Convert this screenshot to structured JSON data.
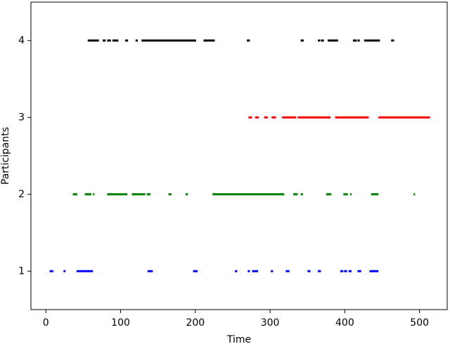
{
  "chart_data": {
    "type": "timeline",
    "xlabel": "Time",
    "ylabel": "Participants",
    "xlim": [
      -20,
      537
    ],
    "ylim": [
      0.5,
      4.5
    ],
    "xticks": [
      0,
      100,
      200,
      300,
      400,
      500
    ],
    "yticks": [
      1,
      2,
      3,
      4
    ],
    "series": [
      {
        "y": 1,
        "color": "#0000ff",
        "segments": [
          [
            5,
            10
          ],
          [
            23.5,
            26.3
          ],
          [
            41,
            63
          ],
          [
            136,
            143
          ],
          [
            197,
            203
          ],
          [
            253,
            256
          ],
          [
            270,
            273
          ],
          [
            276,
            284
          ],
          [
            301,
            304
          ],
          [
            321,
            326
          ],
          [
            350,
            354
          ],
          [
            364,
            368
          ],
          [
            394,
            398
          ],
          [
            399,
            403
          ],
          [
            405,
            409
          ],
          [
            417,
            422
          ],
          [
            433,
            445
          ]
        ]
      },
      {
        "y": 2,
        "color": "#008000",
        "segments": [
          [
            36,
            42
          ],
          [
            52,
            61
          ],
          [
            63,
            65
          ],
          [
            82,
            109
          ],
          [
            115,
            133
          ],
          [
            135,
            140
          ],
          [
            164,
            168
          ],
          [
            187,
            190
          ],
          [
            223,
            319
          ],
          [
            331,
            337
          ],
          [
            341,
            344
          ],
          [
            375,
            382
          ],
          [
            398,
            404
          ],
          [
            407,
            409
          ],
          [
            435,
            445
          ],
          [
            492,
            494
          ]
        ]
      },
      {
        "y": 3,
        "color": "#ff0000",
        "segments": [
          [
            271,
            276
          ],
          [
            280,
            285
          ],
          [
            292,
            297
          ],
          [
            302,
            308
          ],
          [
            316,
            335
          ],
          [
            337,
            381
          ],
          [
            387,
            432
          ],
          [
            445,
            514
          ]
        ]
      },
      {
        "y": 4,
        "color": "#000000",
        "segments": [
          [
            56,
            71
          ],
          [
            76,
            80
          ],
          [
            82,
            87
          ],
          [
            89,
            97
          ],
          [
            106,
            110
          ],
          [
            120,
            123
          ],
          [
            128,
            201
          ],
          [
            211,
            226
          ],
          [
            269,
            273
          ],
          [
            341,
            345
          ],
          [
            364,
            367
          ],
          [
            368,
            372
          ],
          [
            377,
            391
          ],
          [
            411,
            416
          ],
          [
            417,
            420
          ],
          [
            426,
            447
          ],
          [
            462,
            466
          ]
        ]
      }
    ]
  }
}
